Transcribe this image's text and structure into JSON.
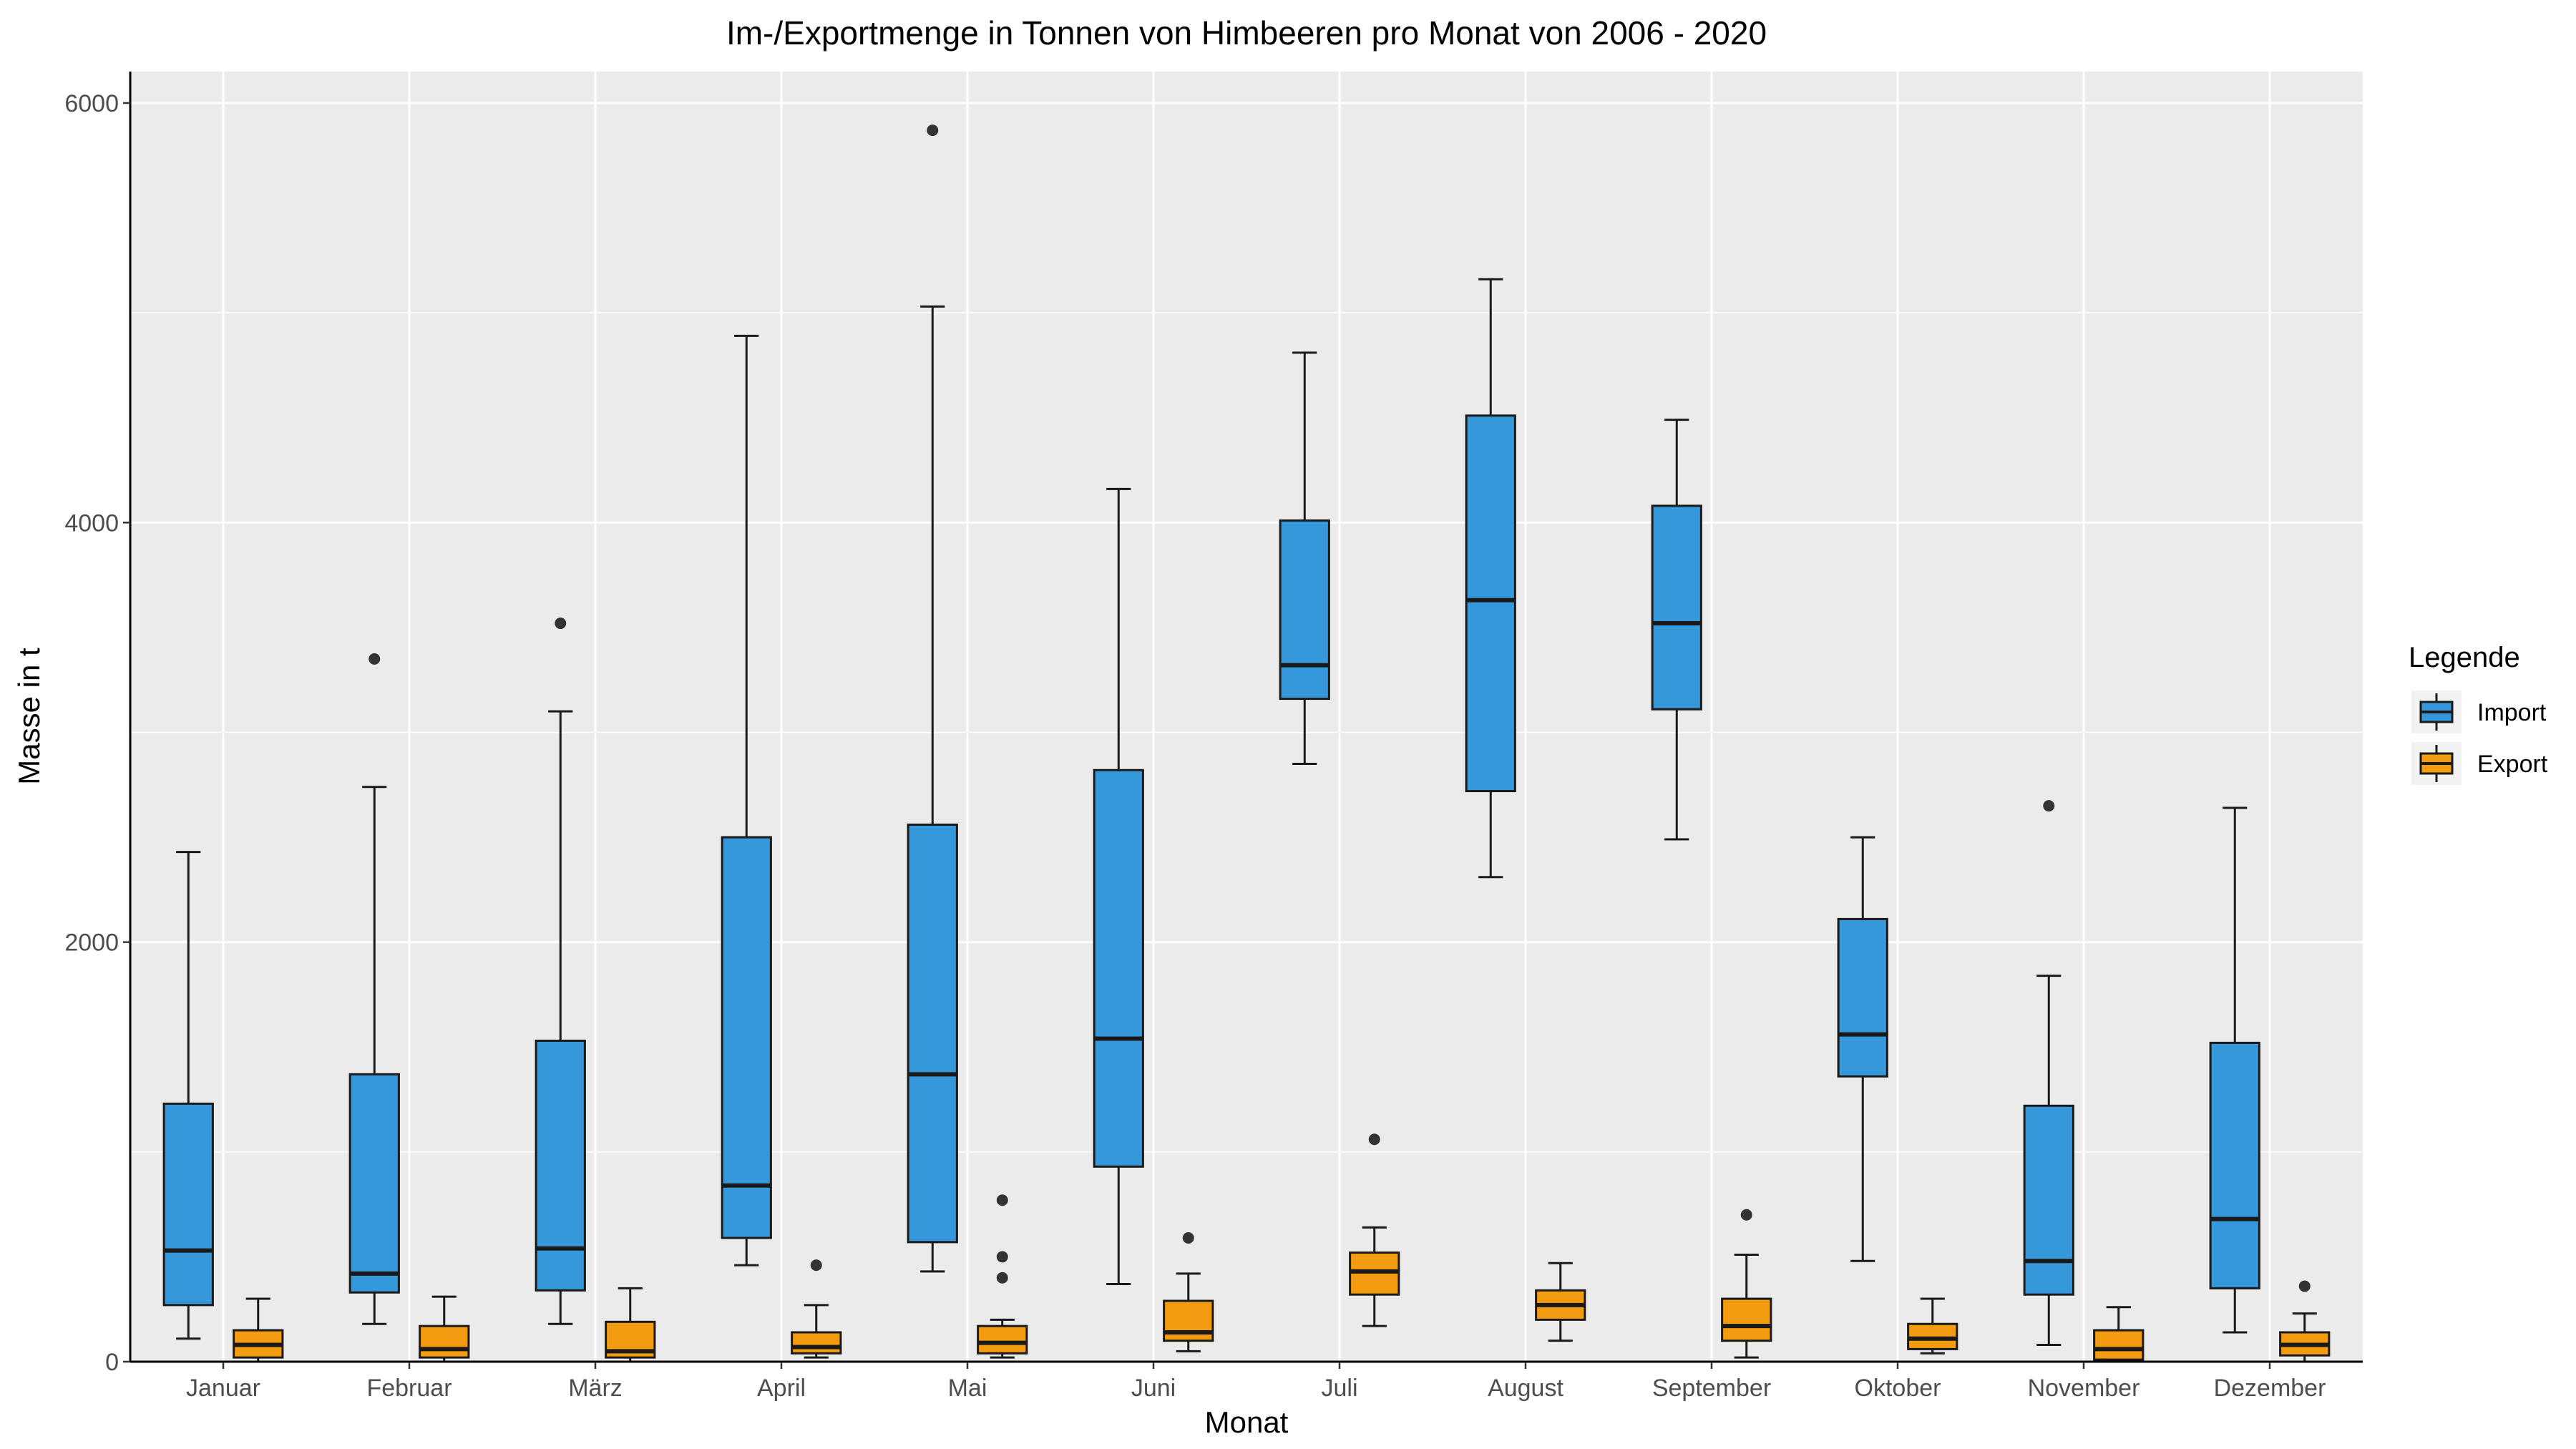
{
  "chart_data": {
    "type": "boxplot",
    "title": "Im-/Exportmenge in Tonnen von Himbeeren pro Monat von 2006 - 2020",
    "xlabel": "Monat",
    "ylabel": "Masse in t",
    "ylim": [
      0,
      6150
    ],
    "y_ticks": [
      0,
      2000,
      4000,
      6000
    ],
    "grid": true,
    "legend_placement": "right",
    "legend_title": "Legende",
    "categories": [
      "Januar",
      "Februar",
      "März",
      "April",
      "Mai",
      "Juni",
      "Juli",
      "August",
      "September",
      "Oktober",
      "November",
      "Dezember"
    ],
    "series": [
      {
        "name": "Import",
        "color": "#3498db",
        "boxes": [
          {
            "low": 110,
            "q1": 270,
            "median": 530,
            "q3": 1230,
            "high": 2430,
            "outliers": []
          },
          {
            "low": 180,
            "q1": 330,
            "median": 420,
            "q3": 1370,
            "high": 2740,
            "outliers": [
              3350
            ]
          },
          {
            "low": 180,
            "q1": 340,
            "median": 540,
            "q3": 1530,
            "high": 3100,
            "outliers": [
              3520
            ]
          },
          {
            "low": 460,
            "q1": 590,
            "median": 840,
            "q3": 2500,
            "high": 4890,
            "outliers": []
          },
          {
            "low": 430,
            "q1": 570,
            "median": 1370,
            "q3": 2560,
            "high": 5030,
            "outliers": [
              5870
            ]
          },
          {
            "low": 370,
            "q1": 930,
            "median": 1540,
            "q3": 2820,
            "high": 4160,
            "outliers": []
          },
          {
            "low": 2850,
            "q1": 3160,
            "median": 3320,
            "q3": 4010,
            "high": 4810,
            "outliers": []
          },
          {
            "low": 2310,
            "q1": 2720,
            "median": 3630,
            "q3": 4510,
            "high": 5160,
            "outliers": []
          },
          {
            "low": 2490,
            "q1": 3110,
            "median": 3520,
            "q3": 4080,
            "high": 4490,
            "outliers": []
          },
          {
            "low": 480,
            "q1": 1360,
            "median": 1560,
            "q3": 2110,
            "high": 2500,
            "outliers": []
          },
          {
            "low": 80,
            "q1": 320,
            "median": 480,
            "q3": 1220,
            "high": 1840,
            "outliers": [
              2650
            ]
          },
          {
            "low": 140,
            "q1": 350,
            "median": 680,
            "q3": 1520,
            "high": 2640,
            "outliers": []
          }
        ]
      },
      {
        "name": "Export",
        "color": "#f39c12",
        "boxes": [
          {
            "low": 0,
            "q1": 20,
            "median": 80,
            "q3": 150,
            "high": 300,
            "outliers": []
          },
          {
            "low": 0,
            "q1": 20,
            "median": 60,
            "q3": 170,
            "high": 310,
            "outliers": []
          },
          {
            "low": 0,
            "q1": 20,
            "median": 50,
            "q3": 190,
            "high": 350,
            "outliers": []
          },
          {
            "low": 20,
            "q1": 40,
            "median": 70,
            "q3": 140,
            "high": 270,
            "outliers": [
              460
            ]
          },
          {
            "low": 20,
            "q1": 40,
            "median": 90,
            "q3": 170,
            "high": 200,
            "outliers": [
              400,
              500,
              770
            ]
          },
          {
            "low": 50,
            "q1": 100,
            "median": 140,
            "q3": 290,
            "high": 420,
            "outliers": [
              590
            ]
          },
          {
            "low": 170,
            "q1": 320,
            "median": 430,
            "q3": 520,
            "high": 640,
            "outliers": [
              1060
            ]
          },
          {
            "low": 100,
            "q1": 200,
            "median": 270,
            "q3": 340,
            "high": 470,
            "outliers": []
          },
          {
            "low": 20,
            "q1": 100,
            "median": 170,
            "q3": 300,
            "high": 510,
            "outliers": [
              700
            ]
          },
          {
            "low": 40,
            "q1": 60,
            "median": 110,
            "q3": 180,
            "high": 300,
            "outliers": []
          },
          {
            "low": 0,
            "q1": 10,
            "median": 60,
            "q3": 150,
            "high": 260,
            "outliers": []
          },
          {
            "low": 0,
            "q1": 30,
            "median": 80,
            "q3": 140,
            "high": 230,
            "outliers": [
              360
            ]
          }
        ]
      }
    ]
  }
}
